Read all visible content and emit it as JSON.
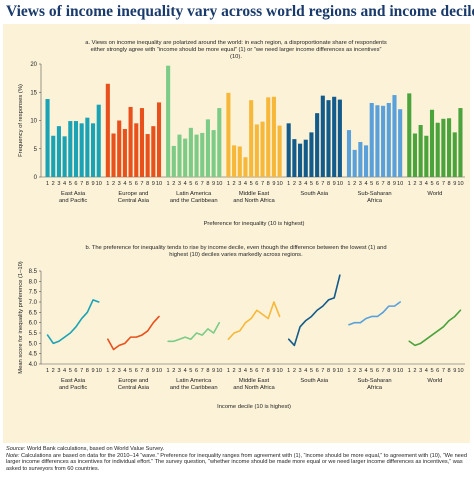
{
  "title": "Views of income inequality vary across world regions and income deciles",
  "footer": {
    "source_label": "Source:",
    "source_text": "World Bank calculations, based on World Value Survey.",
    "note_label": "Note:",
    "note_text": "Calculations are based on data for the 2010–14 “wave.” Preference for inequality ranges from agreement with (1), “income should be more equal,” to agreement with (10), “We need larger income differences as incentives for individual effort.” The survey question, “whether income should be made more equal or we need larger income differences as incentives,” was asked to surveyors from 60 countries."
  },
  "chart_data": [
    {
      "type": "bar",
      "title": "a. Views on income inequality are polarized around the world: in each region, a disproportionate share of respondents either strongly agree with “income should be more equal” (1) or “we need larger income differences as incentives” (10).",
      "ylabel": "Frequency of responses (%)",
      "xlabel": "Preference for inequality (10 is highest)",
      "ylim": [
        0,
        20
      ],
      "yticks": [
        0,
        5,
        10,
        15,
        20
      ],
      "categories": [
        "1",
        "2",
        "3",
        "4",
        "5",
        "6",
        "7",
        "8",
        "9",
        "10"
      ],
      "grid": false,
      "series": [
        {
          "name": "East Asia and Pacific",
          "label_lines": [
            "East Asia",
            "and Pacific"
          ],
          "color": "#1aa3b5",
          "values": [
            13.8,
            7.3,
            9,
            7.2,
            9.9,
            9.9,
            9.5,
            10.5,
            9.5,
            12.8
          ]
        },
        {
          "name": "Europe and Central Asia",
          "label_lines": [
            "Europe and",
            "Central Asia"
          ],
          "color": "#e8501c",
          "values": [
            16.5,
            7.7,
            10,
            8.5,
            12.4,
            9.5,
            12.2,
            7.6,
            9,
            13.2
          ]
        },
        {
          "name": "Latin America and the Caribbean",
          "label_lines": [
            "Latin America",
            "and the Caribbean"
          ],
          "color": "#7ccb86",
          "values": [
            19.7,
            5.5,
            7.5,
            6.8,
            8.7,
            7.5,
            7.8,
            10.2,
            8.3,
            12.2
          ]
        },
        {
          "name": "Middle East and North Africa",
          "label_lines": [
            "Middle East",
            "and North Africa"
          ],
          "color": "#f7b83a",
          "values": [
            14.9,
            5.6,
            5.4,
            3.5,
            13.6,
            9.3,
            9.8,
            14.1,
            14.2,
            9.1
          ]
        },
        {
          "name": "South Asia",
          "label_lines": [
            "South Asia"
          ],
          "color": "#135b8a",
          "values": [
            9.5,
            6.7,
            5.9,
            6.6,
            7.9,
            11.3,
            14.4,
            13.6,
            14.2,
            13.7
          ]
        },
        {
          "name": "Sub-Saharan Africa",
          "label_lines": [
            "Sub-Saharan",
            "Africa"
          ],
          "color": "#5aa0db",
          "values": [
            8.3,
            4.8,
            6.2,
            5.6,
            13.1,
            12.7,
            12.6,
            13.1,
            14.5,
            12
          ]
        },
        {
          "name": "World",
          "label_lines": [
            "World"
          ],
          "color": "#4aa33b",
          "values": [
            14.8,
            7.7,
            9.2,
            7.3,
            11.9,
            9.6,
            10.3,
            10.4,
            7.9,
            12.2
          ]
        }
      ]
    },
    {
      "type": "line",
      "title": "b. The preference for inequality tends to rise by income decile, even though the difference between the lowest (1) and highest (10) deciles varies markedly across regions.",
      "ylabel": "Mean score for inequality preference (1–10)",
      "xlabel": "Income decile (10 is highest)",
      "ylim": [
        4.0,
        8.5
      ],
      "yticks": [
        4.0,
        4.5,
        5.0,
        5.5,
        6.0,
        6.5,
        7.0,
        7.5,
        8.0,
        8.5
      ],
      "categories": [
        "1",
        "2",
        "3",
        "4",
        "5",
        "6",
        "7",
        "8",
        "9",
        "10"
      ],
      "grid": false,
      "series": [
        {
          "name": "East Asia and Pacific",
          "label_lines": [
            "East Asia",
            "and Pacific"
          ],
          "color": "#1aa3b5",
          "values": [
            5.4,
            5.0,
            5.1,
            5.3,
            5.5,
            5.8,
            6.2,
            6.5,
            7.1,
            7.0
          ]
        },
        {
          "name": "Europe and Central Asia",
          "label_lines": [
            "Europe and",
            "Central Asia"
          ],
          "color": "#e8501c",
          "values": [
            5.2,
            4.7,
            4.9,
            5.0,
            5.3,
            5.3,
            5.4,
            5.6,
            6.0,
            6.3
          ]
        },
        {
          "name": "Latin America and the Caribbean",
          "label_lines": [
            "Latin America",
            "and the Caribbean"
          ],
          "color": "#7ccb86",
          "values": [
            5.1,
            5.1,
            5.2,
            5.3,
            5.2,
            5.5,
            5.4,
            5.7,
            5.5,
            6.0
          ]
        },
        {
          "name": "Middle East and North Africa",
          "label_lines": [
            "Middle East",
            "and North Africa"
          ],
          "color": "#f7b83a",
          "values": [
            5.2,
            5.5,
            5.6,
            6.0,
            6.2,
            6.6,
            6.4,
            6.2,
            7.0,
            6.3
          ]
        },
        {
          "name": "South Asia",
          "label_lines": [
            "South Asia"
          ],
          "color": "#135b8a",
          "values": [
            5.2,
            4.9,
            5.8,
            6.1,
            6.3,
            6.6,
            6.8,
            7.1,
            7.2,
            8.3
          ]
        },
        {
          "name": "Sub-Saharan Africa",
          "label_lines": [
            "Sub-Saharan",
            "Africa"
          ],
          "color": "#5aa0db",
          "values": [
            5.9,
            6.0,
            6.0,
            6.2,
            6.3,
            6.3,
            6.5,
            6.8,
            6.8,
            7.0
          ]
        },
        {
          "name": "World",
          "label_lines": [
            "World"
          ],
          "color": "#4aa33b",
          "values": [
            5.1,
            4.9,
            5.0,
            5.2,
            5.4,
            5.6,
            5.8,
            6.1,
            6.3,
            6.6
          ]
        }
      ]
    }
  ]
}
